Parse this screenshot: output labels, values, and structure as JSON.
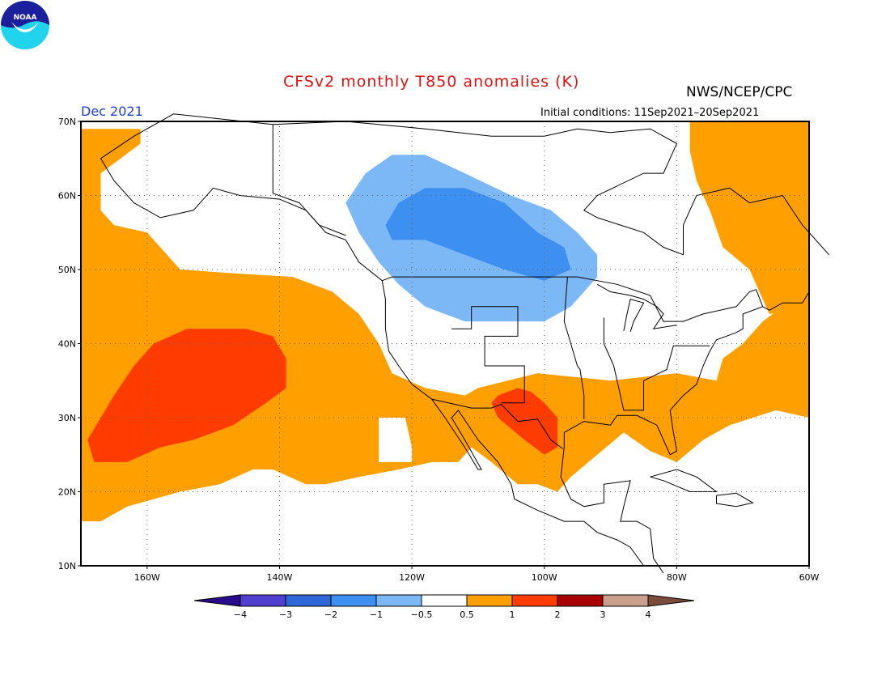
{
  "header": {
    "title": "CFSv2 monthly T850 anomalies (K)",
    "organization": "NWS/NCEP/CPC",
    "month": "Dec 2021",
    "initial_conditions": "Initial conditions: 11Sep2021–20Sep2021"
  },
  "logo": {
    "icon": "noaa-logo-icon",
    "text": "NOAA"
  },
  "map": {
    "projection": "lat-lon",
    "lon_range": [
      -170,
      -60
    ],
    "lat_range": [
      10,
      70
    ],
    "lat_ticks": [
      "70N",
      "60N",
      "50N",
      "40N",
      "30N",
      "20N",
      "10N"
    ],
    "lon_ticks": [
      "160W",
      "140W",
      "120W",
      "100W",
      "80W",
      "60W"
    ]
  },
  "colorbar": {
    "labels": [
      "−4",
      "−3",
      "−2",
      "−1",
      "−0.5",
      "0.5",
      "1",
      "2",
      "3",
      "4"
    ],
    "colors": [
      "#2a0a8c",
      "#5040d0",
      "#2f66d8",
      "#3d8ff0",
      "#7cb8f6",
      "#ffffff",
      "#ffa000",
      "#ff3c00",
      "#a80000",
      "#c8a08c",
      "#7a4a3a"
    ]
  },
  "colors": {
    "above_05": "#ffa000",
    "above_1": "#ff3c00",
    "below_05": "#7cb8f6",
    "below_1": "#3d8ff0"
  }
}
